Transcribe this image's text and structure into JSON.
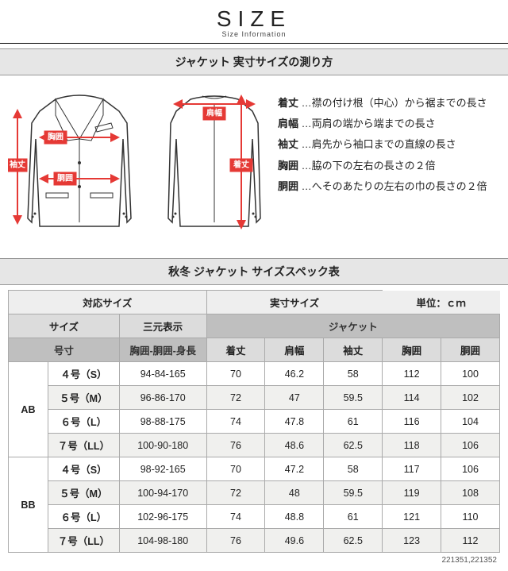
{
  "header": {
    "title": "SIZE",
    "subtitle": "Size Information"
  },
  "bands": {
    "measure": "ジャケット 実寸サイズの測り方",
    "spec": "秋冬 ジャケット サイズスペック表"
  },
  "diagramLabels": {
    "sode": "袖丈",
    "mune": "胸囲",
    "dou": "胴囲",
    "kata": "肩幅",
    "kitake": "着丈"
  },
  "defs": [
    {
      "term": "着丈",
      "desc": "…襟の付け根（中心）から裾までの長さ"
    },
    {
      "term": "肩幅",
      "desc": "…両肩の端から端までの長さ"
    },
    {
      "term": "袖丈",
      "desc": "…肩先から袖口までの直線の長さ"
    },
    {
      "term": "胸囲",
      "desc": "…脇の下の左右の長さの２倍"
    },
    {
      "term": "胴囲",
      "desc": "…へそのあたりの左右の巾の長さの２倍"
    }
  ],
  "table": {
    "group1": {
      "left": "対応サイズ",
      "midright": "実寸サイズ",
      "unit": "単位：ｃｍ"
    },
    "group2": {
      "size": "サイズ",
      "sangen": "三元表示",
      "jacket": "ジャケット"
    },
    "group3": {
      "gousun": "号寸",
      "sangen2": "胸囲-胴囲-身長",
      "c1": "着丈",
      "c2": "肩幅",
      "c3": "袖丈",
      "c4": "胸囲",
      "c5": "胴囲"
    },
    "bodies": [
      {
        "body": "AB",
        "rows": [
          {
            "size": "４号（S）",
            "san": "94-84-165",
            "v": [
              "70",
              "46.2",
              "58",
              "112",
              "100"
            ]
          },
          {
            "size": "５号（M）",
            "san": "96-86-170",
            "v": [
              "72",
              "47",
              "59.5",
              "114",
              "102"
            ]
          },
          {
            "size": "６号（L）",
            "san": "98-88-175",
            "v": [
              "74",
              "47.8",
              "61",
              "116",
              "104"
            ]
          },
          {
            "size": "７号（LL）",
            "san": "100-90-180",
            "v": [
              "76",
              "48.6",
              "62.5",
              "118",
              "106"
            ]
          }
        ]
      },
      {
        "body": "BB",
        "rows": [
          {
            "size": "４号（S）",
            "san": "98-92-165",
            "v": [
              "70",
              "47.2",
              "58",
              "117",
              "106"
            ]
          },
          {
            "size": "５号（M）",
            "san": "100-94-170",
            "v": [
              "72",
              "48",
              "59.5",
              "119",
              "108"
            ]
          },
          {
            "size": "６号（L）",
            "san": "102-96-175",
            "v": [
              "74",
              "48.8",
              "61",
              "121",
              "110"
            ]
          },
          {
            "size": "７号（LL）",
            "san": "104-98-180",
            "v": [
              "76",
              "49.6",
              "62.5",
              "123",
              "112"
            ]
          }
        ]
      }
    ]
  },
  "codes": "221351,221352"
}
